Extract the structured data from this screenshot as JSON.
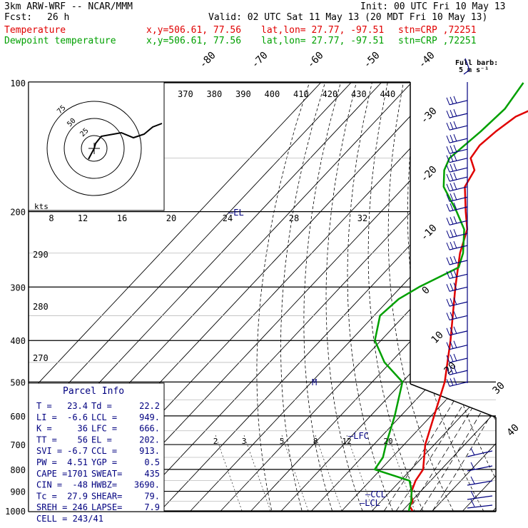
{
  "header": {
    "model": "3km ARW-WRF -- NCAR/MMM",
    "init": "Init: 00 UTC Fri 10 May 13",
    "fcst_label": "Fcst:",
    "fcst_value": "26 h",
    "valid": "Valid: 02 UTC Sat 11 May 13 (20 MDT Fri 10 May 13)",
    "temp_label": "Temperature",
    "dew_label": "Dewpoint temperature",
    "xy": "x,y=506.61, 77.56",
    "latlon": "lat,lon= 27.77, -97.51",
    "stn": "stn=CRP ,72251",
    "barb_label_1": "Full barb:",
    "barb_label_2": "5 m s⁻¹"
  },
  "colors": {
    "temperature": "#e00000",
    "dewpoint": "#00a000",
    "barbs": "#000080"
  },
  "chart_data": {
    "type": "line",
    "subtype": "skew-T log-p",
    "pressure_ticks": [
      "100",
      "200",
      "300",
      "400",
      "500",
      "600",
      "700",
      "800",
      "900",
      "1000"
    ],
    "isotherm_labels": [
      "-80",
      "-70",
      "-60",
      "-50",
      "-40",
      "-30",
      "-20",
      "-10",
      "0",
      "10",
      "20",
      "30",
      "40"
    ],
    "theta_labels": [
      "370",
      "380",
      "390",
      "400",
      "410",
      "420",
      "430",
      "440"
    ],
    "theta_left_labels": [
      "290",
      "280",
      "270"
    ],
    "mixing_ratio_labels": [
      "2",
      "3",
      "5",
      "8",
      "12",
      "20"
    ],
    "hodo_speed_labels": [
      "8",
      "12",
      "16",
      "20",
      "24",
      "28",
      "32"
    ],
    "hodo_unit": "kts",
    "hodo_ring_labels": [
      "75",
      "50",
      "25"
    ],
    "series": [
      {
        "name": "Temperature",
        "points": [
          [
            1000,
            23.4
          ],
          [
            975,
            21
          ],
          [
            950,
            20.5
          ],
          [
            925,
            18.5
          ],
          [
            900,
            17
          ],
          [
            850,
            15
          ],
          [
            800,
            14
          ],
          [
            700,
            7
          ],
          [
            600,
            1
          ],
          [
            500,
            -6
          ],
          [
            400,
            -17
          ],
          [
            300,
            -32
          ],
          [
            250,
            -41
          ],
          [
            220,
            -46
          ],
          [
            200,
            -52
          ],
          [
            175,
            -60
          ],
          [
            160,
            -62
          ],
          [
            150,
            -67
          ],
          [
            140,
            -68
          ],
          [
            130,
            -67
          ],
          [
            120,
            -65
          ],
          [
            110,
            -58
          ],
          [
            100,
            -58
          ]
        ]
      },
      {
        "name": "Dewpoint temperature",
        "points": [
          [
            1000,
            22.2
          ],
          [
            975,
            21
          ],
          [
            950,
            20
          ],
          [
            925,
            18.5
          ],
          [
            900,
            17
          ],
          [
            850,
            13
          ],
          [
            800,
            -2
          ],
          [
            750,
            -3
          ],
          [
            700,
            -6
          ],
          [
            600,
            -12
          ],
          [
            500,
            -20
          ],
          [
            450,
            -32
          ],
          [
            400,
            -42
          ],
          [
            350,
            -48
          ],
          [
            320,
            -47
          ],
          [
            300,
            -44
          ],
          [
            270,
            -37
          ],
          [
            250,
            -40
          ],
          [
            220,
            -47
          ],
          [
            200,
            -55
          ],
          [
            175,
            -67
          ],
          [
            160,
            -72
          ],
          [
            150,
            -74
          ],
          [
            130,
            -72
          ],
          [
            115,
            -71
          ],
          [
            100,
            -73
          ]
        ]
      }
    ],
    "annotations": [
      "EL",
      "LFC",
      "CCL",
      "LCL",
      "M"
    ],
    "wind_barbs_p": [
      110,
      118,
      126,
      135,
      143,
      150,
      158,
      166,
      175,
      185,
      195,
      210,
      225,
      240,
      260,
      280,
      300,
      325,
      350,
      380,
      410,
      440,
      470,
      500,
      540,
      570,
      600,
      650,
      690,
      720,
      760,
      790,
      820,
      860,
      890,
      920,
      950,
      980,
      1000
    ],
    "hodograph_points": [
      [
        95,
        10
      ],
      [
        82,
        5
      ],
      [
        70,
        -5
      ],
      [
        55,
        -10
      ],
      [
        38,
        -3
      ],
      [
        10,
        -8
      ],
      [
        2,
        -18
      ],
      [
        0,
        -25
      ],
      [
        -8,
        -40
      ]
    ]
  },
  "parcel_info": {
    "title": "Parcel Info",
    "rows": [
      [
        "T  =",
        "23.4",
        "Td =",
        "22.2"
      ],
      [
        "LI =",
        "-6.6",
        "LCL =",
        "949."
      ],
      [
        "K  =",
        "36",
        "LFC =",
        "666."
      ],
      [
        "TT =",
        "56",
        "EL  =",
        "202."
      ],
      [
        "SVI =",
        "-6.7",
        "CCL =",
        "913."
      ],
      [
        "PW =",
        "4.51",
        "YGP =",
        "0.5"
      ],
      [
        "CAPE =",
        "1701",
        "SWEAT=",
        "435"
      ],
      [
        "CIN =",
        "-48",
        "HWBZ=",
        "3690."
      ],
      [
        "Tc =",
        "27.9",
        "SHEAR=",
        "79."
      ],
      [
        "SREH =",
        "246",
        "LAPSE=",
        "7.9"
      ]
    ],
    "cell": "CELL = 243/41"
  }
}
